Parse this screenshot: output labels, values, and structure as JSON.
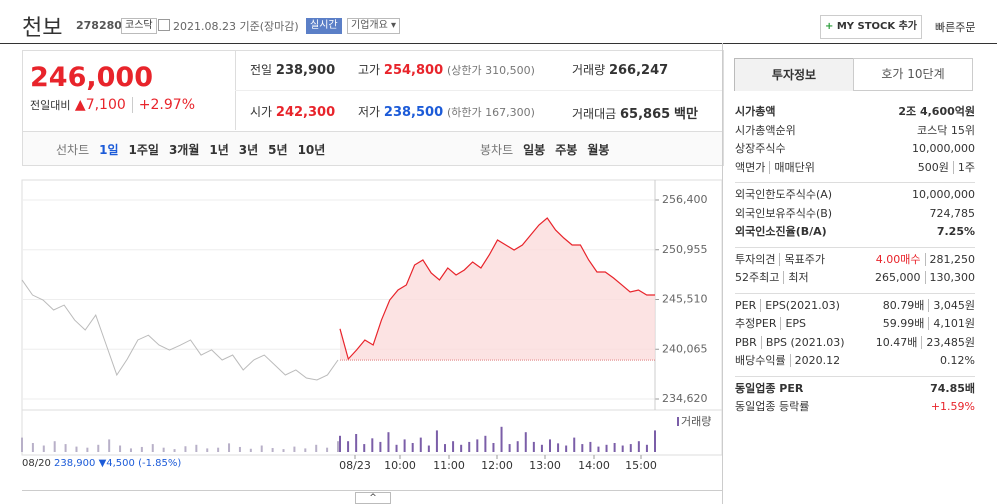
{
  "header": {
    "name": "천보",
    "code": "278280",
    "market": "코스닥",
    "date": "2021.08.23",
    "basis": "기준(장마감)",
    "realtime": "실시간",
    "company": "기업개요",
    "mystock": "MY STOCK 추가",
    "quick_order": "빠른주문"
  },
  "price": {
    "current": "246,000",
    "change_label": "전일대비",
    "change": "7,100",
    "rate": "+2.97%"
  },
  "summary": {
    "prev_label": "전일",
    "prev": "238,900",
    "high_label": "고가",
    "high": "254,800",
    "upper_label": "(상한가 310,500)",
    "volume_label": "거래량",
    "volume": "266,247",
    "open_label": "시가",
    "open": "242,300",
    "low_label": "저가",
    "low": "238,500",
    "lower_label": "(하한가 167,300)",
    "amount_label": "거래대금",
    "amount": "65,865",
    "amount_unit": "백만"
  },
  "periods": {
    "line_label": "선차트",
    "line": [
      "1일",
      "1주일",
      "3개월",
      "1년",
      "3년",
      "5년",
      "10년"
    ],
    "candle_label": "봉차트",
    "candle": [
      "일봉",
      "주봉",
      "월봉"
    ]
  },
  "tabs": [
    "투자정보",
    "호가 10단계"
  ],
  "info": [
    [
      {
        "label": [
          "시가총액"
        ],
        "values": [
          "2조 4,600억원"
        ]
      },
      {
        "label": [
          "시가총액순위"
        ],
        "values": [
          "코스닥 15위"
        ]
      },
      {
        "label": [
          "상장주식수"
        ],
        "values": [
          "10,000,000"
        ]
      },
      {
        "label": [
          "액면가",
          "매매단위"
        ],
        "values": [
          "500원",
          "1주"
        ]
      }
    ],
    [
      {
        "label": [
          "외국인한도주식수(A)"
        ],
        "values": [
          "10,000,000"
        ]
      },
      {
        "label": [
          "외국인보유주식수(B)"
        ],
        "values": [
          "724,785"
        ]
      },
      {
        "label": [
          "외국인소진율(B/A)"
        ],
        "values": [
          "7.25%"
        ]
      }
    ],
    [
      {
        "label": [
          "투자의견",
          "목표주가"
        ],
        "values": [
          "4.00매수",
          "281,250"
        ]
      },
      {
        "label": [
          "52주최고",
          "최저"
        ],
        "values": [
          "265,000",
          "130,300"
        ]
      }
    ],
    [
      {
        "label": [
          "PER",
          "EPS(2021.03)"
        ],
        "values": [
          "80.79배",
          "3,045원"
        ]
      },
      {
        "label": [
          "추정PER",
          "EPS"
        ],
        "values": [
          "59.99배",
          "4,101원"
        ]
      },
      {
        "label": [
          "PBR",
          "BPS (2021.03)"
        ],
        "values": [
          "10.47배",
          "23,485원"
        ]
      },
      {
        "label": [
          "배당수익률",
          "2020.12"
        ],
        "values": [
          "0.12%"
        ]
      }
    ],
    [
      {
        "label": [
          "동일업종 PER"
        ],
        "values": [
          "74.85배"
        ]
      },
      {
        "label": [
          "동일업종 등락률"
        ],
        "values": [
          "+1.59%"
        ]
      }
    ]
  ],
  "chart_data": {
    "type": "line",
    "yticks": [
      {
        "value": 256400,
        "label": "256,400"
      },
      {
        "value": 250955,
        "label": "250,955"
      },
      {
        "value": 245510,
        "label": "245,510"
      },
      {
        "value": 240065,
        "label": "240,065"
      },
      {
        "value": 234620,
        "label": "234,620"
      }
    ],
    "ylim": [
      234620,
      256400
    ],
    "xticks": [
      "08/20",
      "08/23",
      "10:00",
      "11:00",
      "12:00",
      "13:00",
      "14:00",
      "15:00"
    ],
    "prev_close": 238900,
    "series": [
      {
        "color": "#bbbbbb",
        "values": [
          247650,
          246000,
          245450,
          244360,
          244900,
          243260,
          242170,
          243800,
          240530,
          237250,
          239000,
          241080,
          241600,
          240530,
          239980,
          240500,
          241080,
          239430,
          240000,
          238890,
          239430,
          237800,
          238890,
          239430,
          238340,
          237250,
          237800,
          236920,
          236700,
          237250,
          238890
        ]
      },
      {
        "color": "#e8242b",
        "values": [
          242300,
          239000,
          239980,
          241080,
          240530,
          243260,
          245450,
          246550,
          247100,
          249285,
          249835,
          248410,
          247645,
          248960,
          248190,
          248740,
          249615,
          248960,
          250380,
          252020,
          251475,
          250925,
          251475,
          252570,
          253665,
          254430,
          253120,
          252240,
          251475,
          251475,
          249835,
          248520,
          248520,
          247860,
          247100,
          246330,
          246550,
          246000,
          246000
        ]
      }
    ],
    "volume_label": "거래량",
    "volume": [
      {
        "color": "#b8b0c8",
        "values": [
          40,
          25,
          18,
          30,
          22,
          15,
          12,
          20,
          35,
          18,
          10,
          14,
          22,
          12,
          8,
          16,
          20,
          10,
          12,
          24,
          14,
          9,
          18,
          11,
          8,
          15,
          10,
          20,
          12,
          30
        ]
      },
      {
        "color": "#7b5ea8",
        "values": [
          45,
          30,
          50,
          22,
          38,
          28,
          55,
          20,
          35,
          25,
          40,
          18,
          60,
          22,
          30,
          20,
          28,
          35,
          45,
          25,
          70,
          22,
          30,
          55,
          28,
          20,
          35,
          24,
          18,
          40,
          22,
          28,
          15,
          20,
          25,
          18,
          22,
          30,
          20,
          60
        ]
      }
    ]
  },
  "footer": {
    "date": "08/20",
    "price": "238,900",
    "change": "▼4,500",
    "rate": "(-1.85%)"
  }
}
